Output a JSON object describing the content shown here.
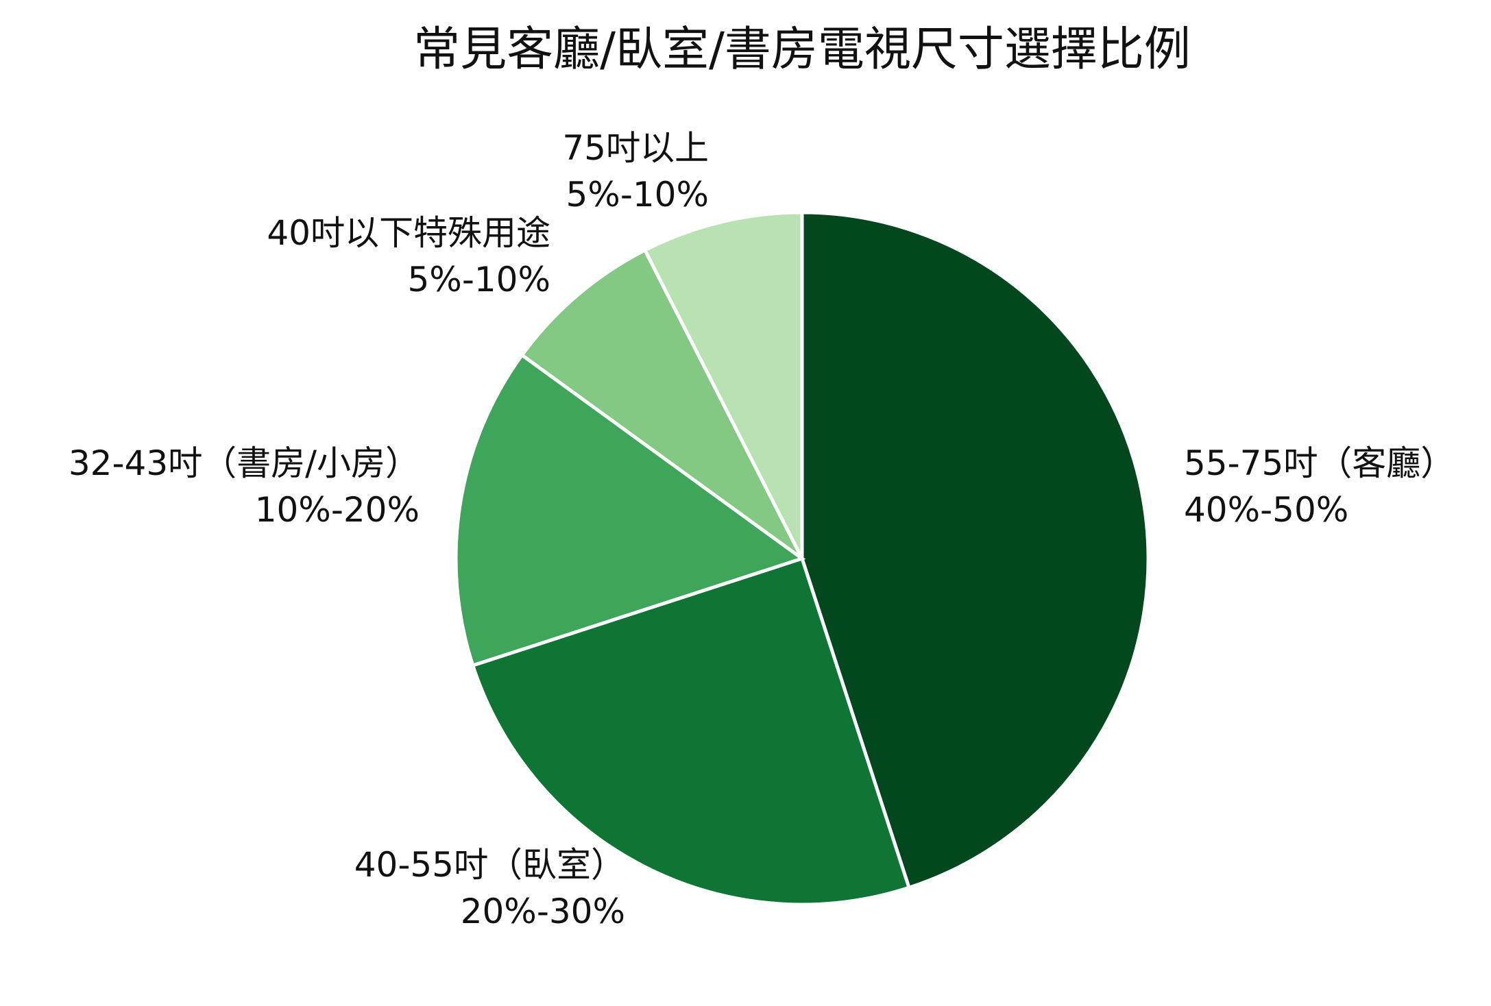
{
  "chart_data": {
    "type": "pie",
    "title": "常見客廳/臥室/書房電視尺寸選擇比例",
    "start_angle_deg": 0,
    "direction": "clockwise",
    "slices": [
      {
        "category": "55-75吋（客廳）",
        "range": "40%-50%",
        "value": 45,
        "color": "#02471e"
      },
      {
        "category": "40-55吋（臥室）",
        "range": "20%-30%",
        "value": 25,
        "color": "#0f7535"
      },
      {
        "category": "32-43吋（書房/小房）",
        "range": "10%-20%",
        "value": 15,
        "color": "#3fa55b"
      },
      {
        "category": "40吋以下特殊用途",
        "range": "5%-10%",
        "value": 7.5,
        "color": "#83c883"
      },
      {
        "category": "75吋以上",
        "range": "5%-10%",
        "value": 7.5,
        "color": "#b9e2b3"
      }
    ]
  }
}
